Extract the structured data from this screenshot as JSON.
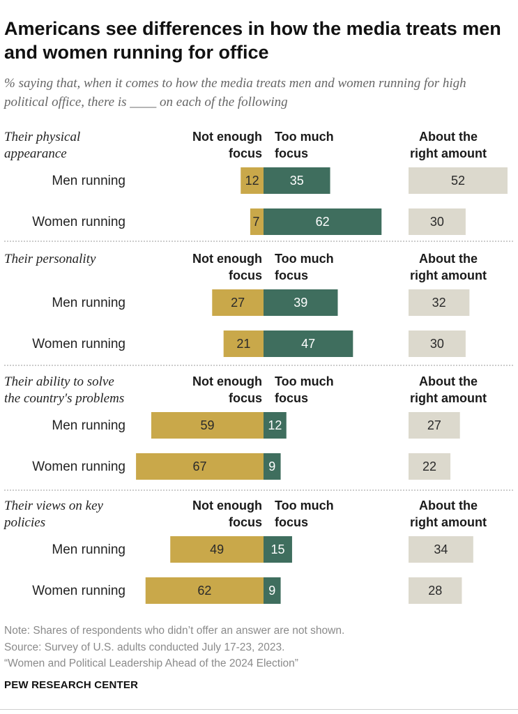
{
  "title": "Americans see differences in how the media treats men and women running for office",
  "subtitle": "% saying that, when it comes to how the media treats men and women running for high political office, there is ____ on each of the following",
  "colors": {
    "not_enough": "#c9a84a",
    "too_much": "#3f6e5e",
    "about_right": "#dcd9cd",
    "divider": "#9a9a9a"
  },
  "chart_data": {
    "type": "bar",
    "orientation": "horizontal-diverging",
    "series": [
      {
        "name": "Not enough focus",
        "key": "not_enough"
      },
      {
        "name": "Too much focus",
        "key": "too_much"
      },
      {
        "name": "About the right amount",
        "key": "about_right"
      }
    ],
    "column_headers": {
      "not_enough": "Not enough focus",
      "too_much": "Too much focus",
      "about_right": "About the right amount"
    },
    "groups": [
      {
        "label": "Their physical appearance",
        "rows": [
          {
            "label": "Men running",
            "not_enough": 12,
            "too_much": 35,
            "about_right": 52
          },
          {
            "label": "Women running",
            "not_enough": 7,
            "too_much": 62,
            "about_right": 30
          }
        ]
      },
      {
        "label": "Their personality",
        "rows": [
          {
            "label": "Men running",
            "not_enough": 27,
            "too_much": 39,
            "about_right": 32
          },
          {
            "label": "Women running",
            "not_enough": 21,
            "too_much": 47,
            "about_right": 30
          }
        ]
      },
      {
        "label": "Their ability to solve the country's problems",
        "rows": [
          {
            "label": "Men running",
            "not_enough": 59,
            "too_much": 12,
            "about_right": 27
          },
          {
            "label": "Women running",
            "not_enough": 67,
            "too_much": 9,
            "about_right": 22
          }
        ]
      },
      {
        "label": "Their views on key policies",
        "rows": [
          {
            "label": "Men running",
            "not_enough": 49,
            "too_much": 15,
            "about_right": 34
          },
          {
            "label": "Women running",
            "not_enough": 62,
            "too_much": 9,
            "about_right": 28
          }
        ]
      }
    ]
  },
  "notes": {
    "note": "Note: Shares of respondents who didn’t offer an answer are not shown.",
    "source": "Source: Survey of U.S. adults conducted July 17-23, 2023.",
    "report": "“Women and Political Leadership Ahead of the 2024 Election”"
  },
  "footer": "PEW RESEARCH CENTER"
}
